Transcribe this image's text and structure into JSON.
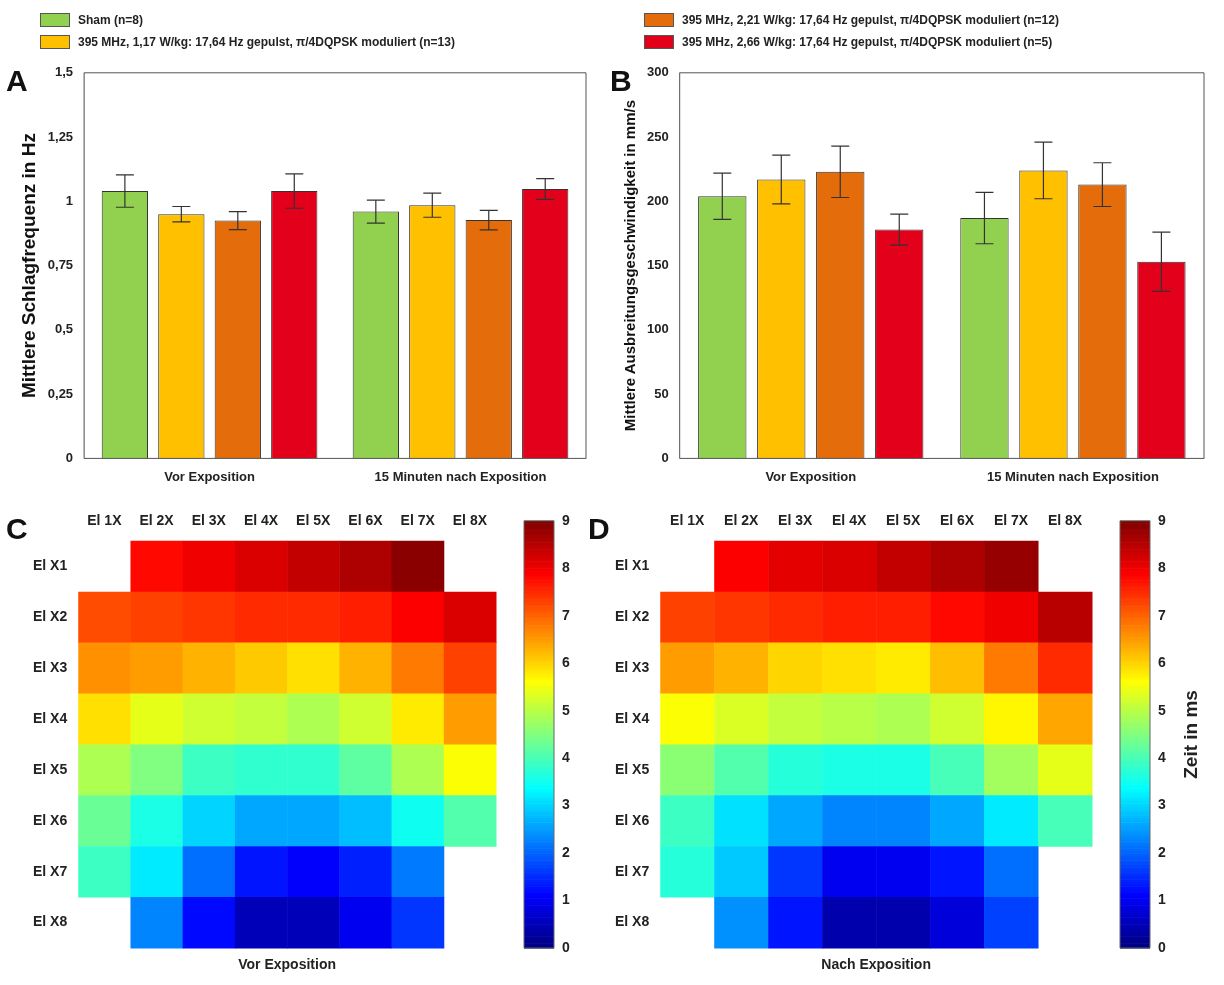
{
  "chart_data": [
    {
      "type": "bar",
      "ylabel": "Mittlere Schlagfrequenz in Hz",
      "categories": [
        "Vor Exposition",
        "15 Minuten nach Exposition"
      ],
      "annotations": [
        "A"
      ],
      "legend": "top left",
      "ylim": [
        0,
        1.5
      ],
      "yticks": [
        0,
        {
          "value": 0.25,
          "label": "0,25"
        },
        {
          "value": 0.5,
          "label": "0,5"
        },
        {
          "value": 0.75,
          "label": "0,75"
        },
        1,
        {
          "value": 1.25,
          "label": "1,25"
        },
        {
          "value": 1.5,
          "label": "1,5"
        }
      ],
      "series": [
        {
          "name": "Sham (n=8)",
          "color": "#92d050",
          "values": [
            1.04,
            0.96
          ],
          "errors": [
            0.063,
            0.045
          ]
        },
        {
          "name": "395 MHz, 1,17 W/kg: 17,64 Hz gepulst, π/4DQPSK moduliert (n=13)",
          "color": "#ffc000",
          "values": [
            0.95,
            0.985
          ],
          "errors": [
            0.03,
            0.047
          ]
        },
        {
          "color": "#e46c0a",
          "values": [
            0.925,
            0.927
          ],
          "errors": [
            0.035,
            0.038
          ]
        },
        {
          "color": "#e3001b",
          "values": [
            1.04,
            1.048
          ],
          "errors": [
            0.067,
            0.04
          ]
        }
      ]
    },
    {
      "type": "bar",
      "ylabel": "Mittlere Ausbreitungsgeschwindigkeit in mm/s",
      "categories": [
        "Vor Exposition",
        "15 Minuten nach Exposition"
      ],
      "annotations": [
        "B"
      ],
      "legend": "top left",
      "ylim": [
        0,
        300
      ],
      "yticks": [
        0,
        50,
        100,
        150,
        200,
        250,
        300
      ],
      "series": [
        {
          "color": "#92d050",
          "values": [
            204,
            187
          ],
          "errors": [
            18,
            20
          ]
        },
        {
          "color": "#ffc000",
          "values": [
            217,
            224
          ],
          "errors": [
            19,
            22
          ]
        },
        {
          "name": "395 MHz, 2,21 W/kg: 17,64 Hz gepulst, π/4DQPSK moduliert (n=12)",
          "color": "#e46c0a",
          "values": [
            223,
            213
          ],
          "errors": [
            20,
            17
          ]
        },
        {
          "name": "395 MHz, 2,66 W/kg: 17,64 Hz gepulst, π/4DQPSK moduliert (n=5)",
          "color": "#e3001b",
          "values": [
            178,
            153
          ],
          "errors": [
            12,
            23
          ]
        }
      ]
    },
    {
      "type": "heatmap",
      "xlabel": "Vor Exposition",
      "annotations": [
        "C"
      ],
      "categories": [
        "El 1X",
        "El 2X",
        "El 3X",
        "El 4X",
        "El 5X",
        "El 6X",
        "El 7X",
        "El 8X"
      ],
      "y_categories": [
        "El X1",
        "El X2",
        "El X3",
        "El X4",
        "El X5",
        "El X6",
        "El X7",
        "El X8"
      ],
      "clim": [
        0,
        9
      ],
      "cticks": [
        0,
        1,
        2,
        3,
        4,
        5,
        6,
        7,
        8,
        9
      ],
      "cells": [
        [
          null,
          7.8,
          8.0,
          8.2,
          8.4,
          8.6,
          8.9,
          null
        ],
        [
          7.2,
          7.3,
          7.4,
          7.5,
          7.5,
          7.6,
          7.9,
          8.2
        ],
        [
          6.6,
          6.5,
          6.3,
          6.1,
          5.9,
          6.3,
          6.8,
          7.3
        ],
        [
          5.9,
          5.4,
          5.2,
          5.1,
          4.9,
          5.2,
          5.8,
          6.5
        ],
        [
          4.9,
          4.5,
          3.9,
          3.8,
          3.8,
          4.2,
          4.9,
          5.6
        ],
        [
          4.3,
          3.6,
          3.0,
          2.6,
          2.6,
          2.8,
          3.5,
          4.1
        ],
        [
          3.9,
          3.2,
          2.1,
          1.3,
          1.1,
          1.4,
          2.2,
          null
        ],
        [
          null,
          2.3,
          1.2,
          0.5,
          0.5,
          1.0,
          1.6,
          null
        ]
      ]
    },
    {
      "type": "heatmap",
      "xlabel": "Nach Exposition",
      "annotations": [
        "D"
      ],
      "categories": [
        "El 1X",
        "El 2X",
        "El 3X",
        "El 4X",
        "El 5X",
        "El 6X",
        "El 7X",
        "El 8X"
      ],
      "y_categories": [
        "El X1",
        "El X2",
        "El X3",
        "El X4",
        "El X5",
        "El X6",
        "El X7",
        "El X8"
      ],
      "clim": [
        0,
        9
      ],
      "cticks": [
        0,
        1,
        2,
        3,
        4,
        5,
        6,
        7,
        8,
        9
      ],
      "clabel": "Zeit in ms",
      "cells": [
        [
          null,
          7.9,
          8.1,
          8.2,
          8.4,
          8.6,
          8.8,
          null
        ],
        [
          7.3,
          7.4,
          7.5,
          7.6,
          7.6,
          7.8,
          8.0,
          8.5
        ],
        [
          6.5,
          6.3,
          6.0,
          5.9,
          5.8,
          6.2,
          6.8,
          7.5
        ],
        [
          5.6,
          5.3,
          5.1,
          5.0,
          4.9,
          5.2,
          5.7,
          6.4
        ],
        [
          4.6,
          4.1,
          3.7,
          3.6,
          3.6,
          4.0,
          4.8,
          5.4
        ],
        [
          3.9,
          3.1,
          2.6,
          2.3,
          2.3,
          2.6,
          3.2,
          4.0
        ],
        [
          3.7,
          2.9,
          1.6,
          1.0,
          1.0,
          1.3,
          2.1,
          null
        ],
        [
          null,
          2.4,
          1.3,
          0.4,
          0.4,
          0.8,
          1.7,
          null
        ]
      ]
    }
  ]
}
